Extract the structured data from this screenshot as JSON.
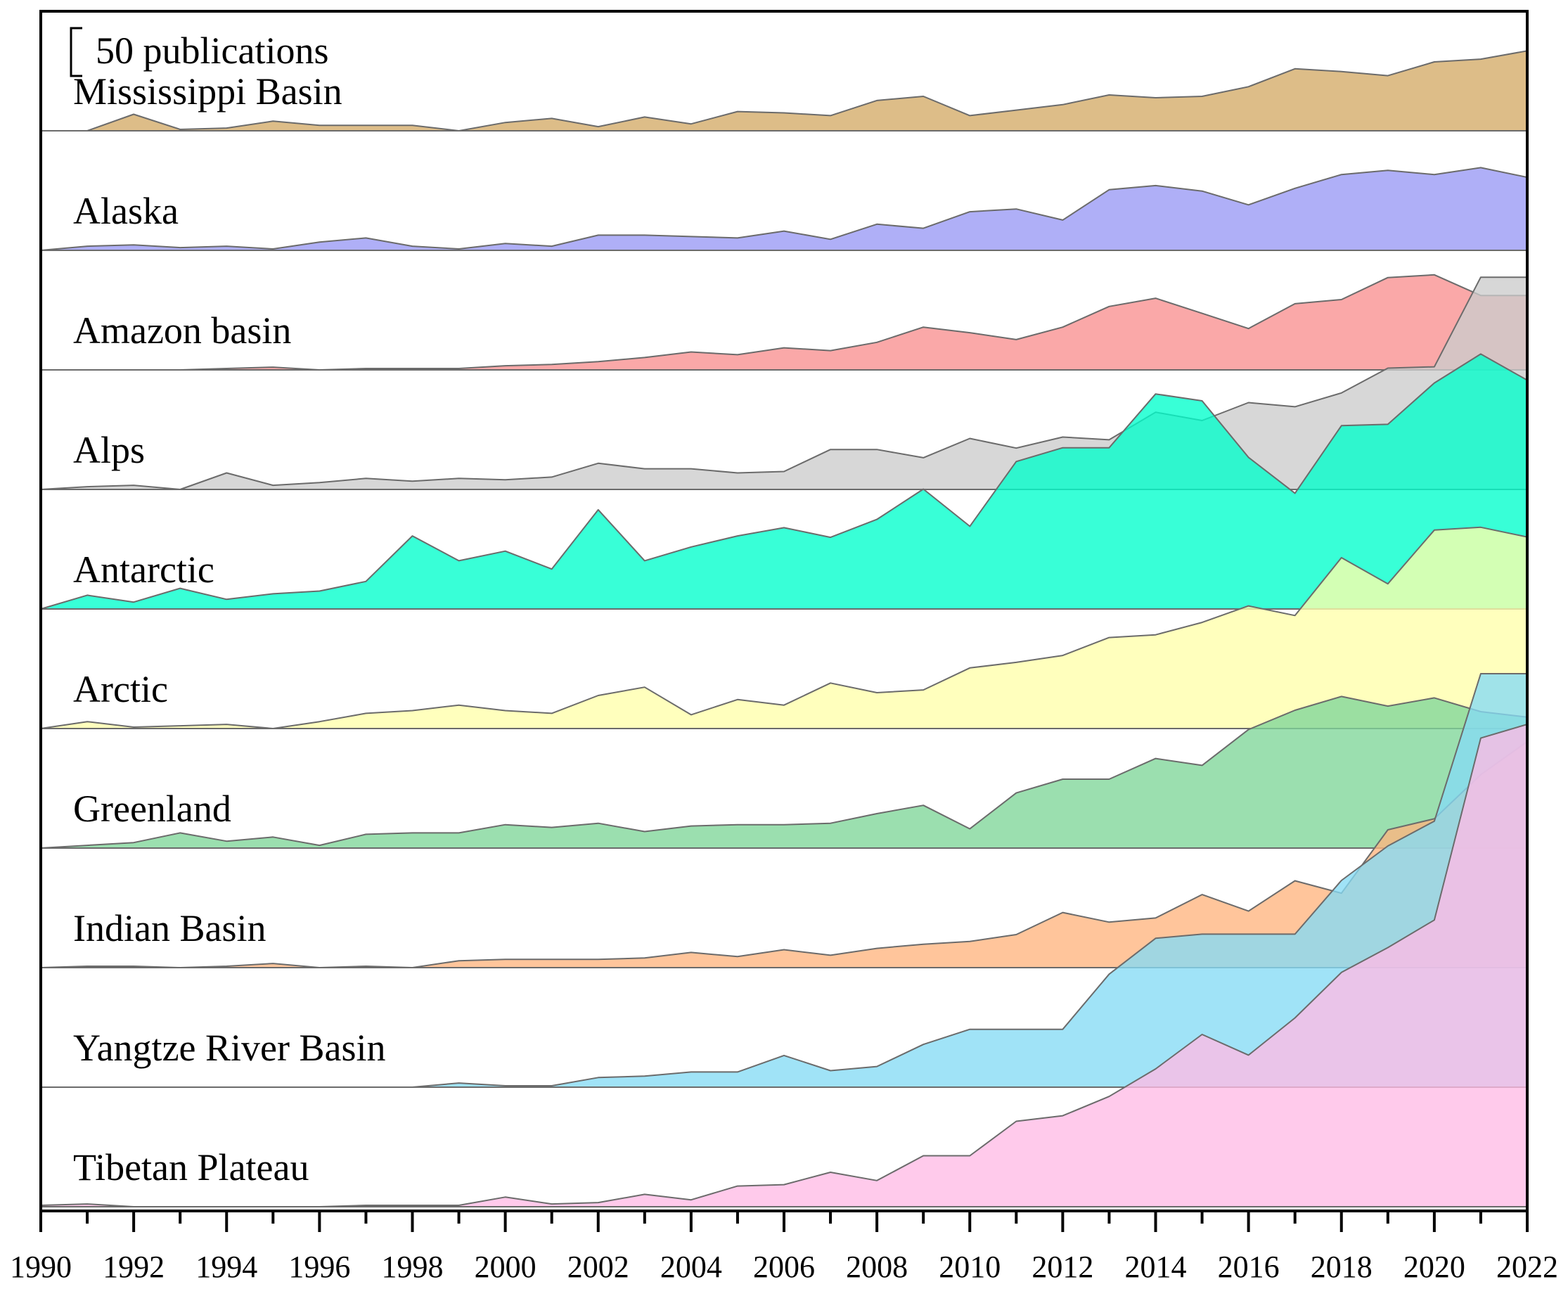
{
  "chart_data": {
    "type": "area",
    "subtype": "ridgeline",
    "title": "",
    "xlabel": "",
    "ylabel": "",
    "scale_bar_label": "50 publications",
    "scale_bar_value": 50,
    "xlim": [
      1990,
      2022
    ],
    "x_tick_labels": [
      "1990",
      "1992",
      "1994",
      "1996",
      "1998",
      "2000",
      "2002",
      "2004",
      "2006",
      "2008",
      "2010",
      "2012",
      "2014",
      "2016",
      "2018",
      "2020",
      "2022"
    ],
    "x": [
      1990,
      1991,
      1992,
      1993,
      1994,
      1995,
      1996,
      1997,
      1998,
      1999,
      2000,
      2001,
      2002,
      2003,
      2004,
      2005,
      2006,
      2007,
      2008,
      2009,
      2010,
      2011,
      2012,
      2013,
      2014,
      2015,
      2016,
      2017,
      2018,
      2019,
      2020,
      2021,
      2022
    ],
    "series": [
      {
        "name": "Mississippi Basin",
        "color": "#d4aa66",
        "values": [
          0,
          0,
          12,
          1,
          2,
          7,
          4,
          4,
          4,
          0,
          6,
          9,
          3,
          10,
          5,
          14,
          13,
          11,
          22,
          25,
          11,
          15,
          19,
          26,
          24,
          25,
          32,
          45,
          43,
          40,
          50,
          52,
          58
        ]
      },
      {
        "name": "Alaska",
        "color": "#9999f5",
        "values": [
          0,
          3,
          4,
          2,
          3,
          1,
          6,
          9,
          3,
          1,
          5,
          3,
          11,
          11,
          10,
          9,
          14,
          8,
          19,
          16,
          28,
          30,
          22,
          44,
          47,
          43,
          33,
          45,
          55,
          58,
          55,
          60,
          53
        ]
      },
      {
        "name": "Amazon basin",
        "color": "#f9908f",
        "values": [
          0,
          0,
          0,
          0,
          1,
          2,
          0,
          1,
          1,
          1,
          3,
          4,
          6,
          9,
          13,
          11,
          16,
          14,
          20,
          31,
          27,
          22,
          31,
          46,
          52,
          41,
          30,
          48,
          51,
          67,
          69,
          54,
          54
        ]
      },
      {
        "name": "Alps",
        "color": "#cccccc",
        "values": [
          0,
          2,
          3,
          0,
          12,
          3,
          5,
          8,
          6,
          8,
          7,
          9,
          19,
          15,
          15,
          12,
          13,
          29,
          29,
          23,
          37,
          30,
          38,
          36,
          56,
          50,
          63,
          60,
          70,
          88,
          89,
          154,
          154
        ]
      },
      {
        "name": "Antarctic",
        "color": "#00ffcc",
        "values": [
          0,
          10,
          5,
          15,
          7,
          11,
          13,
          20,
          53,
          35,
          42,
          29,
          72,
          35,
          45,
          53,
          59,
          52,
          65,
          87,
          60,
          107,
          117,
          117,
          156,
          151,
          110,
          84,
          133,
          134,
          164,
          185,
          166
        ]
      },
      {
        "name": "Arctic",
        "color": "#ffffaa",
        "values": [
          0,
          5,
          1,
          2,
          3,
          0,
          5,
          11,
          13,
          17,
          13,
          11,
          24,
          30,
          10,
          21,
          17,
          33,
          26,
          28,
          44,
          48,
          53,
          66,
          68,
          77,
          89,
          82,
          124,
          105,
          144,
          146,
          139
        ]
      },
      {
        "name": "Greenland",
        "color": "#7fd699",
        "values": [
          0,
          2,
          4,
          11,
          5,
          8,
          2,
          10,
          11,
          11,
          17,
          15,
          18,
          12,
          16,
          17,
          17,
          18,
          25,
          31,
          14,
          40,
          50,
          50,
          65,
          60,
          86,
          100,
          110,
          103,
          109,
          99,
          95
        ]
      },
      {
        "name": "Indian Basin",
        "color": "#ffb57f",
        "values": [
          0,
          1,
          1,
          0,
          1,
          3,
          0,
          1,
          0,
          5,
          6,
          6,
          6,
          7,
          11,
          8,
          13,
          9,
          14,
          17,
          19,
          24,
          40,
          33,
          36,
          53,
          41,
          63,
          54,
          100,
          108,
          140,
          164
        ]
      },
      {
        "name": "Yangtze River Basin",
        "color": "#85dbf5",
        "values": [
          0,
          0,
          0,
          0,
          0,
          0,
          0,
          0,
          0,
          3,
          1,
          1,
          7,
          8,
          11,
          11,
          23,
          12,
          15,
          31,
          42,
          42,
          42,
          82,
          108,
          111,
          111,
          111,
          150,
          175,
          193,
          300,
          300
        ]
      },
      {
        "name": "Tibetan Plateau",
        "color": "#ffbbe5",
        "values": [
          1,
          2,
          0,
          0,
          0,
          0,
          0,
          1,
          1,
          1,
          7,
          2,
          3,
          9,
          5,
          15,
          16,
          25,
          19,
          37,
          37,
          62,
          66,
          80,
          100,
          125,
          110,
          137,
          170,
          188,
          208,
          340,
          350
        ]
      }
    ]
  }
}
